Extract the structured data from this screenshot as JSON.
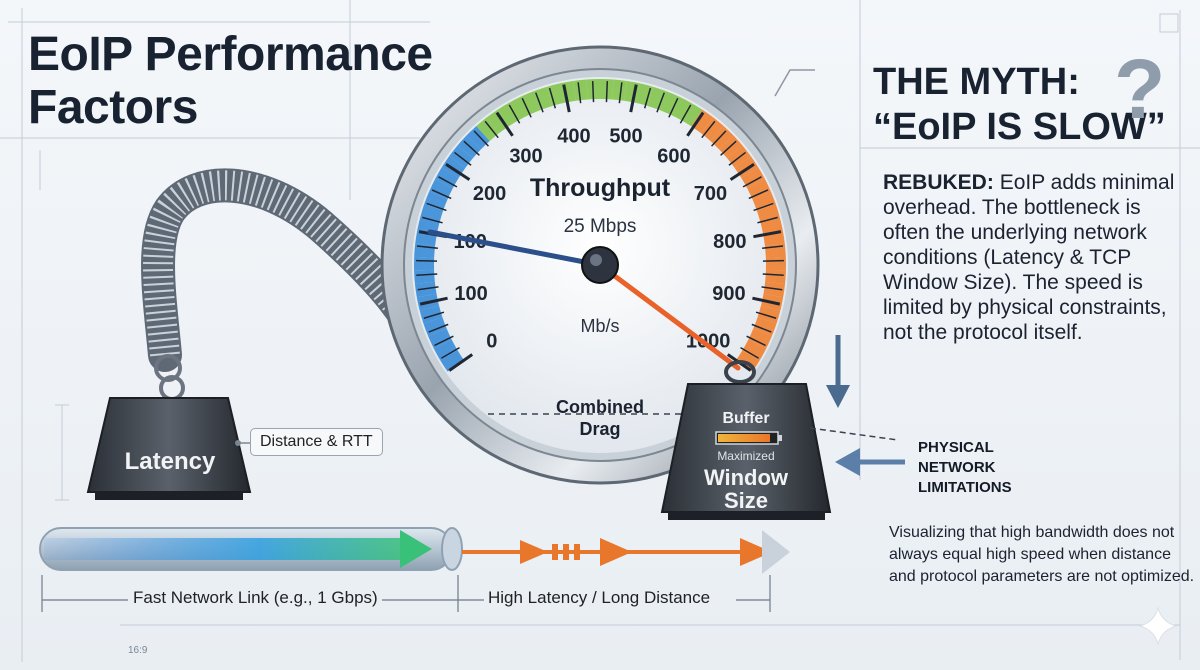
{
  "title": {
    "line1": "EoIP Performance",
    "line2": "Factors"
  },
  "gauge": {
    "heading": "Throughput",
    "reading": "25 Mbps",
    "unit": "Mb/s",
    "scale_labels": [
      "0",
      "100",
      "100",
      "200",
      "300",
      "400",
      "500",
      "600",
      "700",
      "800",
      "900",
      "1000"
    ],
    "combined_line1": "Combined",
    "combined_line2": "Drag",
    "needle_value_mbps": 25,
    "zone_colors": {
      "low": "#2f86d6",
      "mid": "#7cc242",
      "high": "#f07a24"
    }
  },
  "latency_weight": {
    "label": "Latency",
    "annotation": "Distance & RTT"
  },
  "window_weight": {
    "buffer": "Buffer",
    "maximized": "Maximized",
    "line1": "Window",
    "line2": "Size"
  },
  "myth": {
    "line1": "THE MYTH:",
    "line2": "“EoIP IS SLOW”",
    "mark": "?"
  },
  "rebuked": {
    "lead": "REBUKED:",
    "text": "EoIP adds minimal overhead. The bottleneck is often the underlying network conditions (Latency & TCP Window Size). The speed is limited by physical constraints, not the protocol itself."
  },
  "physical": {
    "line1": "PHYSICAL",
    "line2": "NETWORK",
    "line3": "LIMITATIONS"
  },
  "visualizing": "Visualizing that high bandwidth does not always equal high speed when distance and protocol parameters are not optimized.",
  "links": {
    "fast": "Fast Network Link (e.g., 1 Gbps)",
    "latency": "High Latency / Long Distance"
  },
  "ratio": "16:9"
}
